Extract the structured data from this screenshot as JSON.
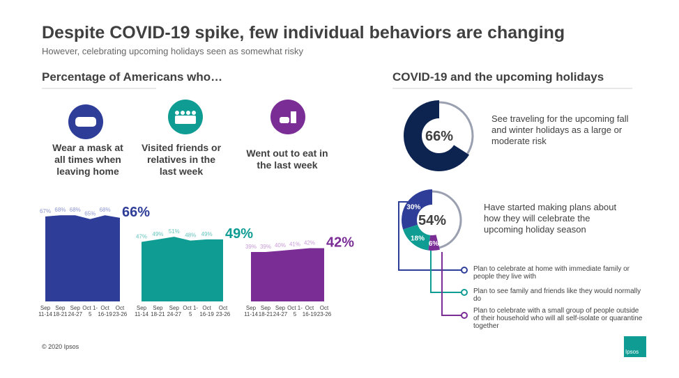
{
  "title": "Despite COVID-19 spike, few individual behaviors are changing",
  "subtitle": "However, celebrating upcoming holidays seen as somewhat risky",
  "left_heading": "Percentage of Americans who…",
  "right_heading": "COVID-19 and the upcoming holidays",
  "footer": "© 2020 Ipsos",
  "logo": "Ipsos",
  "chart_data": [
    {
      "type": "area",
      "label": "Wear a mask at all times when leaving home",
      "color": "#2e3d98",
      "label_color": "#8d95cf",
      "categories": [
        "Sep 11-14",
        "Sep 18-21",
        "Sep 24-27",
        "Oct 1-5",
        "Oct 16-19",
        "Oct 23-26"
      ],
      "values": [
        67,
        68,
        68,
        65,
        68,
        66
      ],
      "value_labels": [
        "67%",
        "68%",
        "68%",
        "65%",
        "68%",
        "66%"
      ],
      "ylim": [
        0,
        100
      ]
    },
    {
      "type": "area",
      "label": "Visited friends or relatives in the last week",
      "color": "#0f9c93",
      "label_color": "#66c4be",
      "categories": [
        "Sep 11-14",
        "Sep 18-21",
        "Sep 24-27",
        "Oct 1-5",
        "Oct 16-19",
        "Oct 23-26"
      ],
      "values": [
        47,
        49,
        51,
        48,
        49,
        49
      ],
      "value_labels": [
        "47%",
        "49%",
        "51%",
        "48%",
        "49%",
        "49%"
      ],
      "ylim": [
        0,
        100
      ]
    },
    {
      "type": "area",
      "label": "Went out to eat in the last week",
      "color": "#7b2d96",
      "label_color": "#c79bd6",
      "categories": [
        "Sep 11-14",
        "Sep 18-21",
        "Sep 24-27",
        "Oct 1-5",
        "Oct 16-19",
        "Oct 23-26"
      ],
      "values": [
        39,
        39,
        40,
        41,
        42,
        42
      ],
      "value_labels": [
        "39%",
        "39%",
        "40%",
        "41%",
        "42%",
        "42%"
      ],
      "ylim": [
        0,
        100
      ]
    },
    {
      "type": "donut",
      "value": 66,
      "value_label": "66%",
      "color": "#0d2350",
      "description": "See traveling for the upcoming fall and winter holidays as a large or moderate risk"
    },
    {
      "type": "donut",
      "value": 54,
      "value_label": "54%",
      "description": "Have started making plans about how they will celebrate the upcoming holiday season",
      "series": [
        {
          "name": "Plan to celebrate at home with immediate family or people they live with",
          "color": "#2e3d98",
          "value": 30,
          "value_label": "30%"
        },
        {
          "name": "Plan to see family and friends like they would normally do",
          "color": "#0f9c93",
          "value": 18,
          "value_label": "18%"
        },
        {
          "name": "Plan to celebrate with a small group of people outside of their household who will all self-isolate or quarantine together",
          "color": "#7b2d96",
          "value": 6,
          "value_label": "6%"
        }
      ]
    }
  ]
}
